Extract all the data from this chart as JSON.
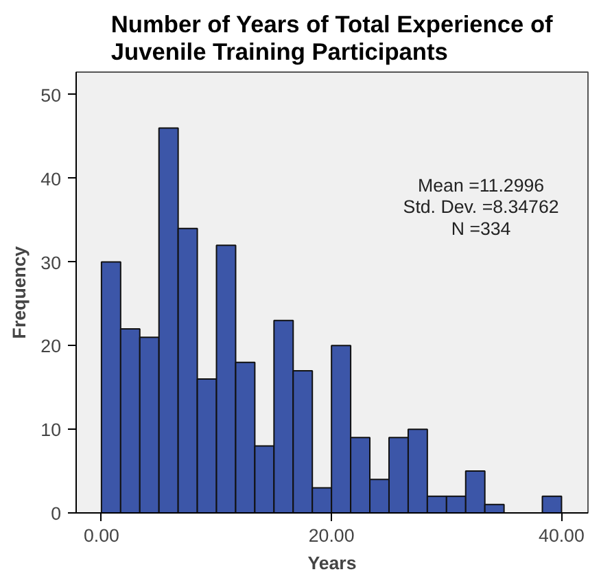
{
  "chart_data": {
    "type": "histogram",
    "title": "Number of Years of Total Experience of\nJuvenile Training Participants",
    "xlabel": "Years",
    "ylabel": "Frequency",
    "bins": [
      0,
      1.667,
      3.333,
      5,
      6.667,
      8.333,
      10,
      11.667,
      13.333,
      15,
      16.667,
      18.333,
      20,
      21.667,
      23.333,
      25,
      26.667,
      28.333,
      30,
      31.667,
      33.333,
      35,
      36.667,
      38.333,
      40
    ],
    "values": [
      30,
      22,
      21,
      46,
      34,
      16,
      32,
      18,
      8,
      23,
      17,
      3,
      20,
      9,
      4,
      9,
      10,
      2,
      2,
      5,
      1,
      0,
      0,
      2
    ],
    "color": "#3c56a8",
    "xlim": [
      -2.2,
      42.3
    ],
    "ylim": [
      0,
      52.7
    ],
    "xticks": [
      {
        "value": 0,
        "label": "0.00"
      },
      {
        "value": 20,
        "label": "20.00"
      },
      {
        "value": 40,
        "label": "40.00"
      }
    ],
    "yticks": [
      0,
      10,
      20,
      30,
      40,
      50
    ],
    "annotations": [
      "Mean =11.2996\nStd. Dev. =8.34762\nN =334"
    ],
    "grid": false
  }
}
